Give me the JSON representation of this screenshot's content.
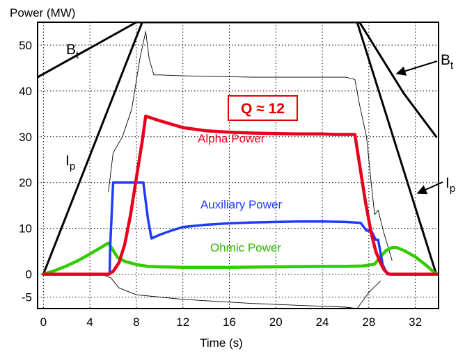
{
  "chart_data": {
    "type": "line",
    "ylabel": "Power (MW)",
    "xlabel": "Time (s)",
    "xlim": [
      -0.5,
      34.0
    ],
    "ylim": [
      -7.5,
      55.0
    ],
    "xticks": [
      0,
      4,
      8,
      12,
      16,
      20,
      24,
      28,
      32
    ],
    "yticks": [
      50,
      40,
      30,
      20,
      10,
      0,
      -5
    ],
    "xtick_labels": [
      "0",
      "4",
      "8",
      "12",
      "16",
      "20",
      "24",
      "28",
      "32"
    ],
    "ytick_labels": [
      "50",
      "40",
      "30",
      "20",
      "10",
      "0",
      "-5"
    ],
    "grid": true,
    "annotation": {
      "text": "Q ≈ 12",
      "color": "#e00000"
    },
    "series": [
      {
        "name": "Alpha Power",
        "label": "Alpha Power",
        "color": "#e8001c",
        "width": 4.5,
        "x": [
          0,
          5.6,
          6.0,
          6.5,
          7.0,
          7.5,
          8.0,
          8.5,
          8.8,
          10,
          12,
          14,
          16,
          18,
          20,
          22,
          24,
          25,
          26,
          26.8,
          27.2,
          27.7,
          28.2,
          28.6,
          29.0,
          29.3,
          29.6,
          29.8,
          34
        ],
        "y": [
          0,
          0,
          0.6,
          2.5,
          6.5,
          13,
          21,
          29,
          34.5,
          33.5,
          32,
          31.3,
          31.0,
          30.8,
          30.7,
          30.6,
          30.6,
          30.5,
          30.5,
          30.5,
          24,
          16,
          9,
          5,
          2.5,
          1,
          0.2,
          0,
          0
        ]
      },
      {
        "name": "Auxiliary Power",
        "label": "Auxiliary Power",
        "color": "#1e3cff",
        "width": 3.5,
        "x": [
          0,
          5.7,
          5.75,
          6.0,
          8.6,
          9.0,
          9.3,
          10,
          11,
          12,
          14,
          16,
          18,
          20,
          22,
          24,
          26,
          27.3,
          27.8,
          28.2,
          28.6,
          28.8,
          29.2,
          29.6,
          34
        ],
        "y": [
          0,
          0,
          6,
          20,
          20,
          12,
          7.8,
          8.6,
          9.5,
          10.3,
          10.8,
          11.1,
          11.3,
          11.4,
          11.5,
          11.5,
          11.4,
          11.2,
          9.5,
          9.5,
          7.5,
          7.5,
          2,
          0,
          0
        ]
      },
      {
        "name": "Ohmic Power",
        "label": "Ohmic Power",
        "color": "#33cc00",
        "width": 4.5,
        "x": [
          0,
          1,
          2,
          3,
          4,
          5,
          5.6,
          6.0,
          6.4,
          7,
          8,
          9,
          10,
          12,
          14,
          16,
          20,
          24,
          26,
          27.5,
          28.5,
          29,
          29.5,
          30,
          30.4,
          31,
          32,
          33,
          33.8
        ],
        "y": [
          0,
          0.8,
          1.8,
          3.0,
          4.4,
          5.9,
          6.8,
          5.2,
          3.6,
          2.8,
          2.1,
          1.7,
          1.6,
          1.5,
          1.5,
          1.5,
          1.6,
          1.7,
          1.7,
          1.8,
          2.2,
          3.8,
          5.2,
          5.8,
          5.8,
          5.2,
          3.8,
          1.8,
          0
        ]
      },
      {
        "name": "B_t",
        "color": "#000000",
        "width": 3,
        "x": [
          -0.5,
          8.0,
          27.2,
          31.0,
          33.8
        ],
        "y": [
          43,
          55,
          55,
          39.5,
          30
        ]
      },
      {
        "name": "I_p",
        "color": "#000000",
        "width": 3,
        "x": [
          0,
          8.5,
          27.0,
          33.8
        ],
        "y": [
          0,
          55,
          55,
          0
        ]
      },
      {
        "name": "trace-upper",
        "color": "#000000",
        "width": 0.9,
        "x": [
          5.6,
          6.0,
          6.8,
          7.6,
          8.3,
          8.8,
          9.1,
          9.5,
          10,
          12,
          14,
          16,
          18,
          20,
          22,
          24,
          26,
          26.8,
          27.2,
          27.8,
          28.2,
          28.5,
          28.8,
          29.3,
          30.0
        ],
        "y": [
          18,
          26.5,
          30,
          36,
          47,
          53,
          47,
          43.5,
          43.5,
          43.3,
          43.2,
          43.1,
          43.0,
          43.0,
          43.0,
          43.0,
          43.0,
          42.5,
          37,
          30,
          20,
          13,
          14,
          9,
          3
        ]
      },
      {
        "name": "trace-lower",
        "color": "#000000",
        "width": 0.9,
        "x": [
          0,
          5,
          5.8,
          6.5,
          8,
          10,
          12,
          14,
          16,
          18,
          20,
          22,
          24,
          26,
          27,
          28,
          29
        ],
        "y": [
          0,
          0,
          -0.8,
          -3,
          -4.5,
          -5,
          -5.5,
          -5.8,
          -6.1,
          -6.4,
          -6.6,
          -6.8,
          -7.0,
          -7.2,
          -7.5,
          -4,
          -1.5
        ]
      }
    ]
  }
}
